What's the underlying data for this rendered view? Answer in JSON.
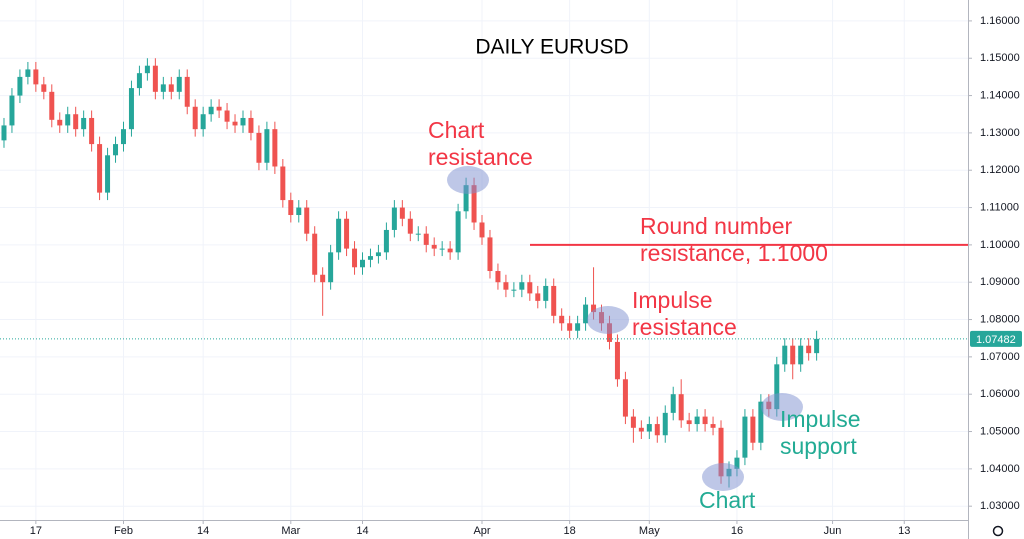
{
  "chart_data": {
    "type": "candlestick",
    "title": "DAILY EURUSD",
    "up_color": "#26a69a",
    "down_color": "#ef5350",
    "xlim": [
      -0.5,
      121
    ],
    "ylim": [
      1.0263,
      1.1656
    ],
    "grid": true,
    "xticks": [
      {
        "value": 4,
        "label": "17"
      },
      {
        "value": 15,
        "label": "Feb"
      },
      {
        "value": 25,
        "label": "14"
      },
      {
        "value": 36,
        "label": "Mar"
      },
      {
        "value": 45,
        "label": "14"
      },
      {
        "value": 60,
        "label": "Apr"
      },
      {
        "value": 71,
        "label": "18"
      },
      {
        "value": 81,
        "label": "May"
      },
      {
        "value": 92,
        "label": "16"
      },
      {
        "value": 104,
        "label": "Jun"
      },
      {
        "value": 113,
        "label": "13"
      }
    ],
    "yticks": [
      {
        "value": 1.03,
        "label": "1.03000"
      },
      {
        "value": 1.04,
        "label": "1.04000"
      },
      {
        "value": 1.05,
        "label": "1.05000"
      },
      {
        "value": 1.06,
        "label": "1.06000"
      },
      {
        "value": 1.07,
        "label": "1.07000"
      },
      {
        "value": 1.08,
        "label": "1.08000"
      },
      {
        "value": 1.09,
        "label": "1.09000"
      },
      {
        "value": 1.1,
        "label": "1.10000"
      },
      {
        "value": 1.11,
        "label": "1.11000"
      },
      {
        "value": 1.12,
        "label": "1.12000"
      },
      {
        "value": 1.13,
        "label": "1.13000"
      },
      {
        "value": 1.14,
        "label": "1.14000"
      },
      {
        "value": 1.15,
        "label": "1.15000"
      },
      {
        "value": 1.16,
        "label": "1.16000"
      }
    ],
    "last_price": 1.07482,
    "resistance_level": 1.1,
    "annotations": [
      {
        "lines": [
          "Chart",
          "resistance"
        ],
        "color": "#f23645"
      },
      {
        "lines": [
          "Round number",
          "resistance, 1.1000"
        ],
        "color": "#f23645"
      },
      {
        "lines": [
          "Impulse",
          "resistance"
        ],
        "color": "#f23645"
      },
      {
        "lines": [
          "Impulse",
          "support"
        ],
        "color": "#22ab94"
      },
      {
        "lines": [
          "Chart"
        ],
        "color": "#22ab94"
      }
    ],
    "candles": [
      [
        1.128,
        1.134,
        1.126,
        1.132
      ],
      [
        1.132,
        1.142,
        1.13,
        1.14
      ],
      [
        1.14,
        1.147,
        1.138,
        1.145
      ],
      [
        1.145,
        1.149,
        1.143,
        1.147
      ],
      [
        1.147,
        1.149,
        1.141,
        1.143
      ],
      [
        1.143,
        1.145,
        1.139,
        1.141
      ],
      [
        1.141,
        1.143,
        1.1315,
        1.1335
      ],
      [
        1.1335,
        1.1355,
        1.13,
        1.132
      ],
      [
        1.132,
        1.137,
        1.13,
        1.135
      ],
      [
        1.135,
        1.137,
        1.129,
        1.131
      ],
      [
        1.131,
        1.136,
        1.129,
        1.134
      ],
      [
        1.134,
        1.136,
        1.125,
        1.127
      ],
      [
        1.127,
        1.129,
        1.112,
        1.114
      ],
      [
        1.114,
        1.126,
        1.112,
        1.124
      ],
      [
        1.124,
        1.129,
        1.122,
        1.127
      ],
      [
        1.127,
        1.133,
        1.125,
        1.131
      ],
      [
        1.131,
        1.144,
        1.129,
        1.142
      ],
      [
        1.142,
        1.148,
        1.14,
        1.146
      ],
      [
        1.146,
        1.15,
        1.144,
        1.148
      ],
      [
        1.148,
        1.15,
        1.139,
        1.141
      ],
      [
        1.141,
        1.145,
        1.139,
        1.143
      ],
      [
        1.143,
        1.145,
        1.139,
        1.141
      ],
      [
        1.141,
        1.147,
        1.139,
        1.145
      ],
      [
        1.145,
        1.147,
        1.135,
        1.137
      ],
      [
        1.137,
        1.139,
        1.129,
        1.131
      ],
      [
        1.131,
        1.137,
        1.129,
        1.135
      ],
      [
        1.135,
        1.139,
        1.133,
        1.137
      ],
      [
        1.137,
        1.139,
        1.134,
        1.136
      ],
      [
        1.136,
        1.138,
        1.131,
        1.133
      ],
      [
        1.133,
        1.135,
        1.13,
        1.132
      ],
      [
        1.132,
        1.136,
        1.13,
        1.134
      ],
      [
        1.134,
        1.136,
        1.128,
        1.13
      ],
      [
        1.13,
        1.132,
        1.12,
        1.122
      ],
      [
        1.122,
        1.133,
        1.12,
        1.131
      ],
      [
        1.131,
        1.133,
        1.119,
        1.121
      ],
      [
        1.121,
        1.123,
        1.11,
        1.112
      ],
      [
        1.112,
        1.114,
        1.106,
        1.108
      ],
      [
        1.108,
        1.112,
        1.106,
        1.11
      ],
      [
        1.11,
        1.112,
        1.101,
        1.103
      ],
      [
        1.103,
        1.105,
        1.09,
        1.092
      ],
      [
        1.092,
        1.094,
        1.081,
        1.09
      ],
      [
        1.09,
        1.1,
        1.088,
        1.098
      ],
      [
        1.098,
        1.109,
        1.096,
        1.107
      ],
      [
        1.107,
        1.109,
        1.097,
        1.099
      ],
      [
        1.099,
        1.101,
        1.092,
        1.094
      ],
      [
        1.094,
        1.098,
        1.092,
        1.096
      ],
      [
        1.096,
        1.099,
        1.094,
        1.097
      ],
      [
        1.097,
        1.1,
        1.095,
        1.098
      ],
      [
        1.098,
        1.106,
        1.096,
        1.104
      ],
      [
        1.104,
        1.112,
        1.102,
        1.11
      ],
      [
        1.11,
        1.112,
        1.105,
        1.107
      ],
      [
        1.107,
        1.109,
        1.101,
        1.103
      ],
      [
        1.103,
        1.105,
        1.101,
        1.103
      ],
      [
        1.103,
        1.105,
        1.098,
        1.1
      ],
      [
        1.1,
        1.102,
        1.097,
        1.099
      ],
      [
        1.099,
        1.101,
        1.097,
        1.099
      ],
      [
        1.099,
        1.101,
        1.096,
        1.098
      ],
      [
        1.098,
        1.111,
        1.096,
        1.109
      ],
      [
        1.109,
        1.118,
        1.107,
        1.116
      ],
      [
        1.116,
        1.118,
        1.104,
        1.106
      ],
      [
        1.106,
        1.108,
        1.1,
        1.102
      ],
      [
        1.102,
        1.104,
        1.091,
        1.093
      ],
      [
        1.093,
        1.095,
        1.088,
        1.09
      ],
      [
        1.09,
        1.092,
        1.086,
        1.088
      ],
      [
        1.088,
        1.09,
        1.086,
        1.088
      ],
      [
        1.088,
        1.092,
        1.086,
        1.09
      ],
      [
        1.09,
        1.092,
        1.085,
        1.087
      ],
      [
        1.087,
        1.089,
        1.083,
        1.085
      ],
      [
        1.085,
        1.091,
        1.083,
        1.089
      ],
      [
        1.089,
        1.091,
        1.079,
        1.081
      ],
      [
        1.081,
        1.083,
        1.077,
        1.079
      ],
      [
        1.079,
        1.081,
        1.075,
        1.077
      ],
      [
        1.077,
        1.081,
        1.075,
        1.079
      ],
      [
        1.079,
        1.086,
        1.077,
        1.084
      ],
      [
        1.084,
        1.094,
        1.08,
        1.082
      ],
      [
        1.082,
        1.084,
        1.077,
        1.079
      ],
      [
        1.079,
        1.081,
        1.072,
        1.074
      ],
      [
        1.074,
        1.076,
        1.062,
        1.064
      ],
      [
        1.064,
        1.066,
        1.052,
        1.054
      ],
      [
        1.054,
        1.056,
        1.047,
        1.051
      ],
      [
        1.051,
        1.053,
        1.048,
        1.05
      ],
      [
        1.05,
        1.054,
        1.048,
        1.052
      ],
      [
        1.052,
        1.054,
        1.047,
        1.049
      ],
      [
        1.049,
        1.057,
        1.047,
        1.055
      ],
      [
        1.055,
        1.062,
        1.053,
        1.06
      ],
      [
        1.06,
        1.064,
        1.051,
        1.053
      ],
      [
        1.053,
        1.055,
        1.05,
        1.052
      ],
      [
        1.052,
        1.056,
        1.05,
        1.054
      ],
      [
        1.054,
        1.056,
        1.05,
        1.052
      ],
      [
        1.052,
        1.054,
        1.049,
        1.051
      ],
      [
        1.051,
        1.053,
        1.036,
        1.038
      ],
      [
        1.038,
        1.042,
        1.035,
        1.04
      ],
      [
        1.04,
        1.045,
        1.038,
        1.043
      ],
      [
        1.043,
        1.056,
        1.041,
        1.054
      ],
      [
        1.054,
        1.056,
        1.045,
        1.047
      ],
      [
        1.047,
        1.06,
        1.045,
        1.058
      ],
      [
        1.058,
        1.06,
        1.054,
        1.056
      ],
      [
        1.056,
        1.07,
        1.054,
        1.068
      ],
      [
        1.068,
        1.075,
        1.066,
        1.073
      ],
      [
        1.073,
        1.075,
        1.064,
        1.068
      ],
      [
        1.068,
        1.075,
        1.066,
        1.073
      ],
      [
        1.073,
        1.075,
        1.069,
        1.071
      ],
      [
        1.071,
        1.077,
        1.069,
        1.07482
      ]
    ]
  }
}
